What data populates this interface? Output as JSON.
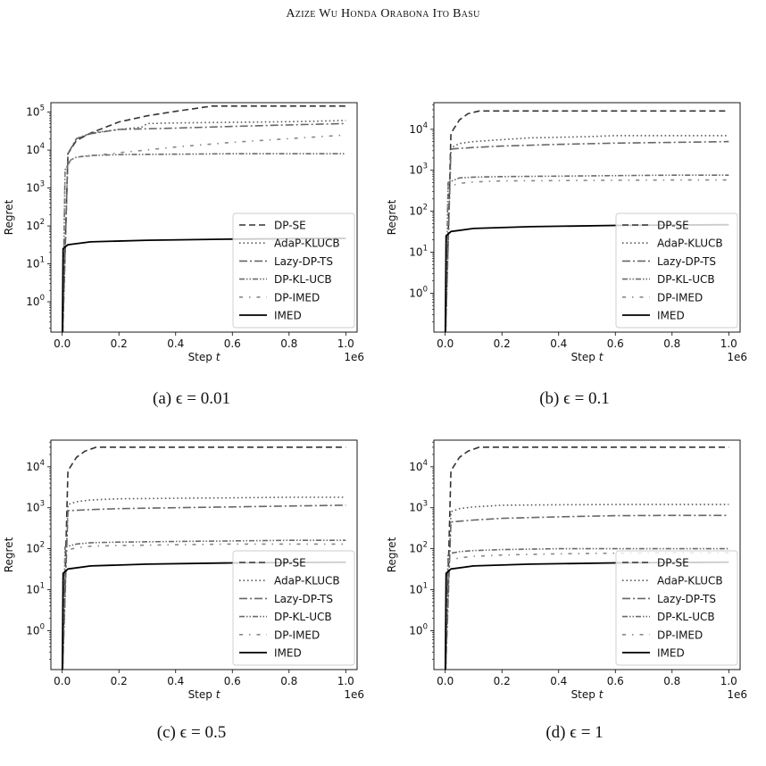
{
  "header": "Azize Wu Honda Orabona Ito Basu",
  "chart_data": [
    {
      "type": "line",
      "caption": "(a) ϵ = 0.01",
      "xlabel": "Step t",
      "ylabel": "Regret",
      "x_multiplier": "1e6",
      "yscale": "log",
      "xlim": [
        -0.04,
        1.04
      ],
      "ylim_log10": [
        -0.8,
        5.25
      ],
      "xticks": [
        "0.0",
        "0.2",
        "0.4",
        "0.6",
        "0.8",
        "1.0"
      ],
      "yticks": [
        "10^0",
        "10^1",
        "10^2",
        "10^3",
        "10^4",
        "10^5"
      ],
      "legend_position": "lower right",
      "series": [
        {
          "name": "DP-SE",
          "x": [
            0,
            0.02,
            0.05,
            0.1,
            0.2,
            0.3,
            0.4,
            0.5,
            0.53,
            0.6,
            1.0
          ],
          "y": [
            0.05,
            8000,
            18000,
            28000,
            55000,
            80000,
            105000,
            135000,
            145000,
            145000,
            145000
          ]
        },
        {
          "name": "AdaP-KLUCB",
          "x": [
            0,
            0.02,
            0.05,
            0.1,
            0.2,
            0.28,
            0.3,
            0.4,
            0.6,
            0.8,
            0.9,
            1.0
          ],
          "y": [
            0.05,
            8000,
            20000,
            28000,
            35000,
            40000,
            50000,
            52000,
            54000,
            56000,
            58000,
            60000
          ]
        },
        {
          "name": "Lazy-DP-TS",
          "x": [
            0,
            0.02,
            0.05,
            0.1,
            0.2,
            0.4,
            0.6,
            0.8,
            1.0
          ],
          "y": [
            0.05,
            8000,
            20000,
            27000,
            35000,
            38000,
            42000,
            46000,
            50000
          ]
        },
        {
          "name": "DP-KL-UCB",
          "x": [
            0,
            0.01,
            0.03,
            0.05,
            0.1,
            0.2,
            0.4,
            0.6,
            1.0
          ],
          "y": [
            0.05,
            3000,
            5500,
            6500,
            7200,
            7600,
            7800,
            8000,
            8000
          ]
        },
        {
          "name": "DP-IMED",
          "x": [
            0,
            0.01,
            0.03,
            0.05,
            0.1,
            0.2,
            0.4,
            0.6,
            0.8,
            1.0
          ],
          "y": [
            0.05,
            3000,
            5500,
            6500,
            7000,
            8500,
            12000,
            16000,
            20000,
            25000
          ]
        },
        {
          "name": "IMED",
          "x": [
            0,
            0.003,
            0.02,
            0.1,
            0.3,
            0.6,
            1.0
          ],
          "y": [
            0.05,
            25,
            32,
            38,
            42,
            45,
            47
          ]
        }
      ]
    },
    {
      "type": "line",
      "caption": "(b) ϵ = 0.1",
      "xlabel": "Step t",
      "ylabel": "Regret",
      "x_multiplier": "1e6",
      "yscale": "log",
      "xlim": [
        -0.04,
        1.04
      ],
      "ylim_log10": [
        -0.95,
        4.65
      ],
      "xticks": [
        "0.0",
        "0.2",
        "0.4",
        "0.6",
        "0.8",
        "1.0"
      ],
      "yticks": [
        "10^0",
        "10^1",
        "10^2",
        "10^3",
        "10^4"
      ],
      "legend_position": "lower right",
      "series": [
        {
          "name": "DP-SE",
          "x": [
            0,
            0.02,
            0.05,
            0.08,
            0.12,
            0.2,
            1.0
          ],
          "y": [
            0.05,
            8000,
            17000,
            24000,
            28000,
            28000,
            28000
          ]
        },
        {
          "name": "AdaP-KLUCB",
          "x": [
            0,
            0.02,
            0.05,
            0.1,
            0.2,
            0.3,
            0.5,
            0.6,
            0.8,
            1.0
          ],
          "y": [
            0.05,
            3500,
            4500,
            5000,
            5600,
            6200,
            6600,
            7000,
            7000,
            7000
          ]
        },
        {
          "name": "Lazy-DP-TS",
          "x": [
            0,
            0.02,
            0.1,
            0.2,
            0.4,
            0.6,
            0.8,
            1.0
          ],
          "y": [
            0.05,
            3300,
            3600,
            3900,
            4300,
            4600,
            4800,
            5000
          ]
        },
        {
          "name": "DP-KL-UCB",
          "x": [
            0,
            0.01,
            0.05,
            0.1,
            0.2,
            0.4,
            0.6,
            0.8,
            1.0
          ],
          "y": [
            0.05,
            500,
            650,
            680,
            700,
            720,
            740,
            760,
            760
          ]
        },
        {
          "name": "DP-IMED",
          "x": [
            0,
            0.01,
            0.05,
            0.1,
            0.2,
            0.4,
            0.6,
            0.8,
            1.0
          ],
          "y": [
            0.05,
            400,
            480,
            520,
            550,
            560,
            570,
            580,
            580
          ]
        },
        {
          "name": "IMED",
          "x": [
            0,
            0.003,
            0.02,
            0.1,
            0.3,
            0.6,
            1.0
          ],
          "y": [
            0.05,
            25,
            32,
            38,
            42,
            45,
            47
          ]
        }
      ]
    },
    {
      "type": "line",
      "caption": "(c) ϵ = 0.5",
      "xlabel": "Step t",
      "ylabel": "Regret",
      "x_multiplier": "1e6",
      "yscale": "log",
      "xlim": [
        -0.04,
        1.04
      ],
      "ylim_log10": [
        -0.95,
        4.65
      ],
      "xticks": [
        "0.0",
        "0.2",
        "0.4",
        "0.6",
        "0.8",
        "1.0"
      ],
      "yticks": [
        "10^0",
        "10^1",
        "10^2",
        "10^3",
        "10^4"
      ],
      "legend_position": "lower right",
      "series": [
        {
          "name": "DP-SE",
          "x": [
            0,
            0.02,
            0.05,
            0.08,
            0.12,
            0.2,
            1.0
          ],
          "y": [
            0.05,
            8000,
            17000,
            24000,
            30000,
            30000,
            30000
          ]
        },
        {
          "name": "AdaP-KLUCB",
          "x": [
            0,
            0.02,
            0.05,
            0.1,
            0.2,
            0.4,
            0.6,
            0.8,
            1.0
          ],
          "y": [
            0.05,
            1200,
            1400,
            1550,
            1650,
            1700,
            1750,
            1800,
            1800
          ]
        },
        {
          "name": "Lazy-DP-TS",
          "x": [
            0,
            0.02,
            0.1,
            0.2,
            0.4,
            0.6,
            0.8,
            1.0
          ],
          "y": [
            0.05,
            850,
            900,
            950,
            1000,
            1050,
            1100,
            1150
          ]
        },
        {
          "name": "DP-KL-UCB",
          "x": [
            0,
            0.01,
            0.05,
            0.1,
            0.2,
            0.4,
            0.6,
            0.8,
            1.0
          ],
          "y": [
            0.05,
            110,
            130,
            140,
            145,
            150,
            155,
            160,
            160
          ]
        },
        {
          "name": "DP-IMED",
          "x": [
            0,
            0.01,
            0.05,
            0.1,
            0.2,
            0.4,
            0.6,
            0.8,
            1.0
          ],
          "y": [
            0.05,
            90,
            105,
            115,
            120,
            125,
            130,
            130,
            130
          ]
        },
        {
          "name": "IMED",
          "x": [
            0,
            0.003,
            0.02,
            0.1,
            0.3,
            0.6,
            1.0
          ],
          "y": [
            0.05,
            25,
            32,
            38,
            42,
            45,
            47
          ]
        }
      ]
    },
    {
      "type": "line",
      "caption": "(d) ϵ = 1",
      "xlabel": "Step t",
      "ylabel": "Regret",
      "x_multiplier": "1e6",
      "yscale": "log",
      "xlim": [
        -0.04,
        1.04
      ],
      "ylim_log10": [
        -0.95,
        4.65
      ],
      "xticks": [
        "0.0",
        "0.2",
        "0.4",
        "0.6",
        "0.8",
        "1.0"
      ],
      "yticks": [
        "10^0",
        "10^1",
        "10^2",
        "10^3",
        "10^4"
      ],
      "legend_position": "lower right",
      "series": [
        {
          "name": "DP-SE",
          "x": [
            0,
            0.02,
            0.05,
            0.08,
            0.12,
            0.2,
            1.0
          ],
          "y": [
            0.05,
            8000,
            17000,
            24000,
            30000,
            30000,
            30000
          ]
        },
        {
          "name": "AdaP-KLUCB",
          "x": [
            0,
            0.02,
            0.05,
            0.1,
            0.2,
            0.4,
            0.6,
            0.8,
            1.0
          ],
          "y": [
            0.05,
            800,
            950,
            1050,
            1150,
            1180,
            1200,
            1200,
            1200
          ]
        },
        {
          "name": "Lazy-DP-TS",
          "x": [
            0,
            0.02,
            0.1,
            0.2,
            0.4,
            0.6,
            0.8,
            1.0
          ],
          "y": [
            0.05,
            450,
            500,
            550,
            600,
            640,
            650,
            650
          ]
        },
        {
          "name": "DP-KL-UCB",
          "x": [
            0,
            0.01,
            0.05,
            0.1,
            0.2,
            0.4,
            0.6,
            0.8,
            1.0
          ],
          "y": [
            0.05,
            75,
            85,
            90,
            95,
            100,
            100,
            100,
            100
          ]
        },
        {
          "name": "DP-IMED",
          "x": [
            0,
            0.01,
            0.05,
            0.1,
            0.2,
            0.4,
            0.6,
            0.8,
            1.0
          ],
          "y": [
            0.05,
            50,
            60,
            65,
            70,
            75,
            78,
            80,
            80
          ]
        },
        {
          "name": "IMED",
          "x": [
            0,
            0.003,
            0.02,
            0.1,
            0.3,
            0.6,
            1.0
          ],
          "y": [
            0.05,
            25,
            32,
            38,
            42,
            45,
            47
          ]
        }
      ]
    }
  ],
  "styles": {
    "DP-SE": {
      "color": "#333333",
      "dash": "7 4",
      "width": 1.6
    },
    "AdaP-KLUCB": {
      "color": "#555555",
      "dash": "1.5 3",
      "width": 1.6
    },
    "Lazy-DP-TS": {
      "color": "#666666",
      "dash": "9 3 2 3",
      "width": 1.6
    },
    "DP-KL-UCB": {
      "color": "#6a6a6a",
      "dash": "6 2 1.5 2 1.5 2",
      "width": 1.6
    },
    "DP-IMED": {
      "color": "#888888",
      "dash": "4 7 1.5 7",
      "width": 1.6
    },
    "IMED": {
      "color": "#000000",
      "dash": "",
      "width": 1.8
    }
  }
}
